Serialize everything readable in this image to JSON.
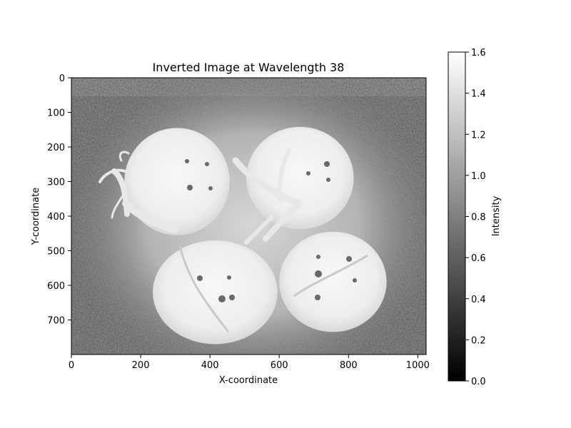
{
  "chart_data": {
    "type": "heatmap",
    "title": "Inverted Image at Wavelength 38",
    "xlabel": "X-coordinate",
    "ylabel": "Y-coordinate",
    "xlim": [
      0,
      1024
    ],
    "ylim": [
      800,
      0
    ],
    "x_ticks": [
      0,
      200,
      400,
      600,
      800,
      1000
    ],
    "y_ticks": [
      0,
      100,
      200,
      300,
      400,
      500,
      600,
      700
    ],
    "colormap": "gray",
    "colorbar": {
      "label": "Intensity",
      "range": [
        0.0,
        1.6
      ],
      "ticks": [
        "0.0",
        "0.2",
        "0.4",
        "0.6",
        "0.8",
        "1.0",
        "1.2",
        "1.4",
        "1.6"
      ]
    },
    "image_content": {
      "background_level": 0.62,
      "glow_level": 1.05,
      "tomatoes": [
        {
          "cx": 305,
          "cy": 300,
          "rx": 152,
          "ry": 155,
          "level": 1.52
        },
        {
          "cx": 660,
          "cy": 290,
          "rx": 155,
          "ry": 148,
          "level": 1.52
        },
        {
          "cx": 415,
          "cy": 620,
          "rx": 180,
          "ry": 150,
          "level": 1.54
        },
        {
          "cx": 755,
          "cy": 590,
          "rx": 155,
          "ry": 145,
          "level": 1.53
        }
      ]
    }
  }
}
